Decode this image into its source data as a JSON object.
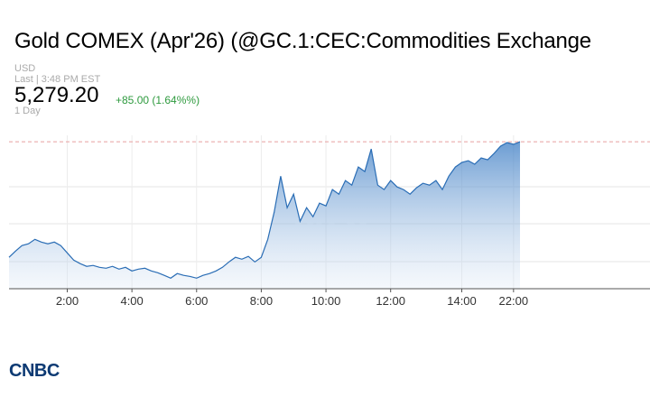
{
  "chart_data": {
    "type": "area",
    "title": "Gold COMEX (Apr'26) (@GC.1:CEC:Commodities Exchange",
    "currency": "USD",
    "last_updated": "Last | 3:48 PM EST",
    "price": "5,279.20",
    "change": "+85.00 (1.64%%)",
    "period": "1 Day",
    "logo": "CNBC",
    "categories": [
      null,
      null,
      null,
      null,
      null,
      null,
      null,
      null,
      null,
      "2:00",
      null,
      null,
      null,
      null,
      null,
      null,
      null,
      null,
      null,
      "4:00",
      null,
      null,
      null,
      null,
      null,
      null,
      null,
      null,
      null,
      "6:00",
      null,
      null,
      null,
      null,
      null,
      null,
      null,
      null,
      null,
      "8:00",
      null,
      null,
      null,
      null,
      null,
      null,
      null,
      null,
      null,
      "10:00",
      null,
      null,
      null,
      null,
      null,
      null,
      null,
      null,
      null,
      "12:00",
      null,
      null,
      null,
      null,
      null,
      null,
      null,
      null,
      null,
      null,
      "14:00",
      null,
      null,
      null,
      null,
      null,
      null,
      null,
      "22:00",
      null
    ],
    "series": [
      {
        "name": "Gold",
        "color": "#2a6db5",
        "values": [
          5201.2,
          5205.4,
          5209.1,
          5210.3,
          5213.3,
          5211.5,
          5210.3,
          5211.5,
          5209.1,
          5204.2,
          5199.3,
          5196.9,
          5195.1,
          5195.7,
          5194.4,
          5193.8,
          5195.1,
          5193.2,
          5194.4,
          5192.0,
          5193.2,
          5193.8,
          5192.0,
          5190.8,
          5189.0,
          5187.1,
          5190.2,
          5189.0,
          5188.3,
          5187.1,
          5189.0,
          5190.2,
          5192.0,
          5194.4,
          5198.1,
          5201.2,
          5199.9,
          5201.8,
          5198.1,
          5201.2,
          5213.3,
          5231.6,
          5256.0,
          5234.7,
          5243.8,
          5225.5,
          5234.7,
          5228.6,
          5237.7,
          5235.9,
          5246.9,
          5243.8,
          5253.0,
          5249.9,
          5262.1,
          5259.1,
          5274.3,
          5249.9,
          5246.9,
          5253.0,
          5248.7,
          5246.9,
          5243.8,
          5248.1,
          5251.2,
          5249.9,
          5253.0,
          5246.9,
          5256.0,
          5262.1,
          5265.2,
          5266.4,
          5264.0,
          5268.2,
          5267.0,
          5271.3,
          5276.2,
          5278.6,
          5277.4,
          5279.2
        ]
      }
    ],
    "ylim": [
      5180,
      5283.5
    ],
    "grid": true
  }
}
